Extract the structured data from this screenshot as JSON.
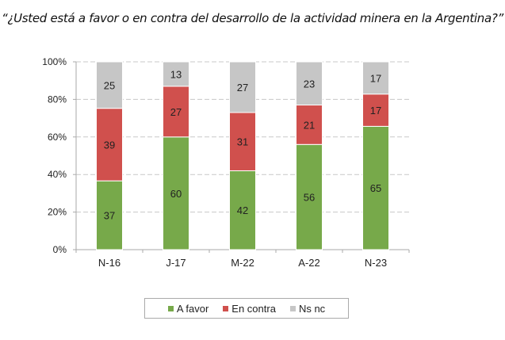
{
  "chart_data": {
    "type": "bar",
    "stacked": true,
    "normalized": true,
    "title": "“¿Usted está a favor o en contra del desarrollo de la actividad minera en la Argentina?”",
    "categories": [
      "N-16",
      "J-17",
      "M-22",
      "A-22",
      "N-23"
    ],
    "series": [
      {
        "name": "A favor",
        "color": "#77a94a",
        "values": [
          37,
          60,
          42,
          56,
          65
        ]
      },
      {
        "name": "En contra",
        "color": "#d0504d",
        "values": [
          39,
          27,
          31,
          21,
          17
        ]
      },
      {
        "name": "Ns nc",
        "color": "#c6c6c6",
        "values": [
          25,
          13,
          27,
          23,
          17
        ]
      }
    ],
    "yticks": [
      "0%",
      "20%",
      "40%",
      "60%",
      "80%",
      "100%"
    ],
    "ylim": [
      0,
      100
    ],
    "grid": true,
    "legend": "bottom"
  }
}
